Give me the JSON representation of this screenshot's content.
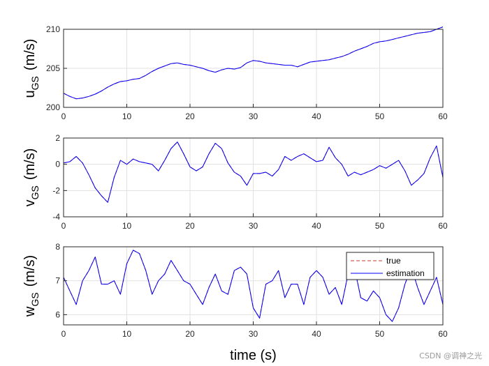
{
  "chart_data": [
    {
      "type": "line",
      "ylabel_main": "u",
      "ylabel_sub": "GS",
      "ylabel_unit": "(m/s)",
      "xlim": [
        0,
        60
      ],
      "ylim": [
        200,
        210
      ],
      "xticks": [
        0,
        10,
        20,
        30,
        40,
        50,
        60
      ],
      "yticks": [
        200,
        205,
        210
      ],
      "grid": true,
      "x": [
        0,
        1,
        2,
        3,
        4,
        5,
        6,
        7,
        8,
        9,
        10,
        11,
        12,
        13,
        14,
        15,
        16,
        17,
        18,
        19,
        20,
        21,
        22,
        23,
        24,
        25,
        26,
        27,
        28,
        29,
        30,
        31,
        32,
        33,
        34,
        35,
        36,
        37,
        38,
        39,
        40,
        41,
        42,
        43,
        44,
        45,
        46,
        47,
        48,
        49,
        50,
        51,
        52,
        53,
        54,
        55,
        56,
        57,
        58,
        59,
        60
      ],
      "series": [
        {
          "name": "true",
          "values": [
            201.8,
            201.4,
            201.1,
            201.2,
            201.4,
            201.7,
            202.1,
            202.6,
            203.0,
            203.3,
            203.4,
            203.6,
            203.7,
            204.1,
            204.6,
            205.0,
            205.3,
            205.6,
            205.7,
            205.5,
            205.4,
            205.2,
            205.0,
            204.7,
            204.5,
            204.8,
            205.0,
            204.9,
            205.1,
            205.7,
            206.0,
            205.9,
            205.7,
            205.6,
            205.5,
            205.4,
            205.4,
            205.2,
            205.5,
            205.8,
            205.9,
            206.0,
            206.1,
            206.3,
            206.5,
            206.8,
            207.2,
            207.5,
            207.8,
            208.2,
            208.4,
            208.5,
            208.7,
            208.9,
            209.1,
            209.3,
            209.5,
            209.6,
            209.7,
            210.0,
            210.3
          ]
        },
        {
          "name": "estimation",
          "values": [
            201.8,
            201.4,
            201.1,
            201.2,
            201.4,
            201.7,
            202.1,
            202.6,
            203.0,
            203.3,
            203.4,
            203.6,
            203.7,
            204.1,
            204.6,
            205.0,
            205.3,
            205.6,
            205.7,
            205.5,
            205.4,
            205.2,
            205.0,
            204.7,
            204.5,
            204.8,
            205.0,
            204.9,
            205.1,
            205.7,
            206.0,
            205.9,
            205.7,
            205.6,
            205.5,
            205.4,
            205.4,
            205.2,
            205.5,
            205.8,
            205.9,
            206.0,
            206.1,
            206.3,
            206.5,
            206.8,
            207.2,
            207.5,
            207.8,
            208.2,
            208.4,
            208.5,
            208.7,
            208.9,
            209.1,
            209.3,
            209.5,
            209.6,
            209.7,
            210.0,
            210.3
          ]
        }
      ]
    },
    {
      "type": "line",
      "ylabel_main": "v",
      "ylabel_sub": "GS",
      "ylabel_unit": "(m/s)",
      "xlim": [
        0,
        60
      ],
      "ylim": [
        -4,
        2
      ],
      "xticks": [
        0,
        10,
        20,
        30,
        40,
        50,
        60
      ],
      "yticks": [
        -4,
        -2,
        0,
        2
      ],
      "grid": true,
      "x": [
        0,
        1,
        2,
        3,
        4,
        5,
        6,
        7,
        8,
        9,
        10,
        11,
        12,
        13,
        14,
        15,
        16,
        17,
        18,
        19,
        20,
        21,
        22,
        23,
        24,
        25,
        26,
        27,
        28,
        29,
        30,
        31,
        32,
        33,
        34,
        35,
        36,
        37,
        38,
        39,
        40,
        41,
        42,
        43,
        44,
        45,
        46,
        47,
        48,
        49,
        50,
        51,
        52,
        53,
        54,
        55,
        56,
        57,
        58,
        59,
        60
      ],
      "series": [
        {
          "name": "true",
          "values": [
            0.1,
            0.2,
            0.6,
            0.1,
            -0.8,
            -1.8,
            -2.4,
            -2.9,
            -1.0,
            0.3,
            0.0,
            0.4,
            0.2,
            0.1,
            0.0,
            -0.5,
            0.3,
            1.2,
            1.7,
            0.8,
            -0.2,
            -0.5,
            -0.2,
            0.8,
            1.6,
            1.2,
            0.1,
            -0.6,
            -0.9,
            -1.6,
            -0.7,
            -0.7,
            -0.6,
            -0.9,
            -0.4,
            0.6,
            0.3,
            0.6,
            0.8,
            0.5,
            0.2,
            0.3,
            1.3,
            0.5,
            0.0,
            -0.9,
            -0.6,
            -0.8,
            -0.6,
            -0.4,
            -0.1,
            -0.3,
            0.0,
            0.3,
            -0.5,
            -1.6,
            -1.2,
            -0.7,
            0.5,
            1.4,
            -1.0
          ]
        },
        {
          "name": "estimation",
          "values": [
            0.1,
            0.2,
            0.6,
            0.1,
            -0.8,
            -1.8,
            -2.4,
            -2.9,
            -1.0,
            0.3,
            0.0,
            0.4,
            0.2,
            0.1,
            0.0,
            -0.5,
            0.3,
            1.2,
            1.7,
            0.8,
            -0.2,
            -0.5,
            -0.2,
            0.8,
            1.6,
            1.2,
            0.1,
            -0.6,
            -0.9,
            -1.6,
            -0.7,
            -0.7,
            -0.6,
            -0.9,
            -0.4,
            0.6,
            0.3,
            0.6,
            0.8,
            0.5,
            0.2,
            0.3,
            1.3,
            0.5,
            0.0,
            -0.9,
            -0.6,
            -0.8,
            -0.6,
            -0.4,
            -0.1,
            -0.3,
            0.0,
            0.3,
            -0.5,
            -1.6,
            -1.2,
            -0.7,
            0.5,
            1.4,
            -1.0
          ]
        }
      ]
    },
    {
      "type": "line",
      "ylabel_main": "w",
      "ylabel_sub": "GS",
      "ylabel_unit": "(m/s)",
      "xlabel": "time (s)",
      "xlim": [
        0,
        60
      ],
      "ylim": [
        5.7,
        8.0
      ],
      "xticks": [
        0,
        10,
        20,
        30,
        40,
        50,
        60
      ],
      "yticks": [
        6,
        7,
        8
      ],
      "grid": true,
      "legend": {
        "position": "top-right",
        "entries": [
          "true",
          "estimation"
        ]
      },
      "x": [
        0,
        1,
        2,
        3,
        4,
        5,
        6,
        7,
        8,
        9,
        10,
        11,
        12,
        13,
        14,
        15,
        16,
        17,
        18,
        19,
        20,
        21,
        22,
        23,
        24,
        25,
        26,
        27,
        28,
        29,
        30,
        31,
        32,
        33,
        34,
        35,
        36,
        37,
        38,
        39,
        40,
        41,
        42,
        43,
        44,
        45,
        46,
        47,
        48,
        49,
        50,
        51,
        52,
        53,
        54,
        55,
        56,
        57,
        58,
        59,
        60
      ],
      "series": [
        {
          "name": "true",
          "values": [
            7.1,
            6.7,
            6.3,
            7.0,
            7.3,
            7.7,
            6.9,
            6.9,
            7.0,
            6.6,
            7.5,
            7.9,
            7.8,
            7.3,
            6.6,
            7.0,
            7.2,
            7.6,
            7.3,
            7.0,
            6.9,
            6.6,
            6.3,
            6.8,
            7.2,
            6.7,
            6.6,
            7.3,
            7.4,
            7.2,
            6.2,
            5.9,
            6.9,
            7.0,
            7.3,
            6.5,
            6.9,
            6.9,
            6.3,
            7.1,
            7.3,
            7.1,
            6.6,
            6.8,
            6.3,
            7.2,
            7.4,
            6.5,
            6.4,
            6.7,
            6.5,
            6.0,
            5.8,
            6.2,
            6.9,
            7.4,
            6.8,
            6.3,
            6.7,
            7.1,
            6.3
          ]
        },
        {
          "name": "estimation",
          "values": [
            7.1,
            6.7,
            6.3,
            7.0,
            7.3,
            7.7,
            6.9,
            6.9,
            7.0,
            6.6,
            7.5,
            7.9,
            7.8,
            7.3,
            6.6,
            7.0,
            7.2,
            7.6,
            7.3,
            7.0,
            6.9,
            6.6,
            6.3,
            6.8,
            7.2,
            6.7,
            6.6,
            7.3,
            7.4,
            7.2,
            6.2,
            5.9,
            6.9,
            7.0,
            7.3,
            6.5,
            6.9,
            6.9,
            6.3,
            7.1,
            7.3,
            7.1,
            6.6,
            6.8,
            6.3,
            7.2,
            7.4,
            6.5,
            6.4,
            6.7,
            6.5,
            6.0,
            5.8,
            6.2,
            6.9,
            7.4,
            6.8,
            6.3,
            6.7,
            7.1,
            6.3
          ]
        }
      ]
    }
  ],
  "colors": {
    "true": "#c0392b",
    "estimation": "#0000ff",
    "grid": "#e1e1e1",
    "axis": "#262626"
  },
  "watermark": "CSDN @调神之光"
}
